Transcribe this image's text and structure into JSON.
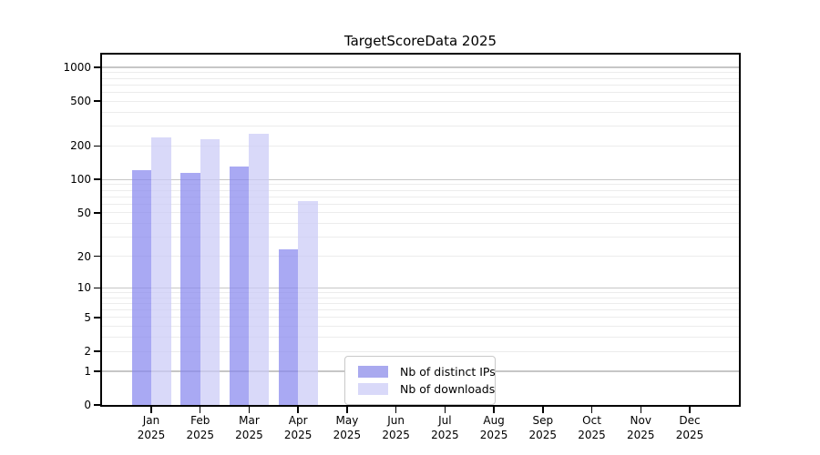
{
  "figure": {
    "background": "#ffffff"
  },
  "chart_data": {
    "type": "bar",
    "title": "TargetScoreData 2025",
    "categories": [
      "Jan",
      "Feb",
      "Mar",
      "Apr",
      "May",
      "Jun",
      "Jul",
      "Aug",
      "Sep",
      "Oct",
      "Nov",
      "Dec"
    ],
    "category_year": "2025",
    "series": [
      {
        "name": "Nb of distinct IPs",
        "color": "rgba(136,136,238,0.72)",
        "legend_color": "#a9a9ef",
        "values": [
          122,
          115,
          130,
          23,
          0,
          0,
          0,
          0,
          0,
          0,
          0,
          0
        ]
      },
      {
        "name": "Nb of downloads",
        "color": "rgba(202,202,247,0.72)",
        "legend_color": "#d9d9f9",
        "values": [
          237,
          229,
          255,
          64,
          0,
          0,
          0,
          0,
          0,
          0,
          0,
          0
        ]
      }
    ],
    "xlabel": "",
    "ylabel": "",
    "yscale": "log1p",
    "ylim": [
      0,
      1300
    ],
    "y_ticks": [
      0,
      1,
      2,
      5,
      10,
      20,
      50,
      100,
      200,
      500,
      1000
    ],
    "y_major_gridlines": [
      1,
      10,
      100,
      1000
    ],
    "y_minor_gridlines": [
      2,
      3,
      4,
      5,
      6,
      7,
      8,
      9,
      20,
      30,
      40,
      50,
      60,
      70,
      80,
      90,
      200,
      300,
      400,
      500,
      600,
      700,
      800,
      900
    ],
    "grid": true,
    "legend_position": "inside-bottom-center"
  },
  "legend": {
    "items": [
      "Nb of distinct IPs",
      "Nb of downloads"
    ]
  },
  "colors": {
    "bar_distinct_ips": "#a9a9ef",
    "bar_downloads": "#d9d9f9",
    "major_gridline": "#c6c6c6",
    "minor_gridline": "#ececec",
    "axis": "#000000",
    "legend_border": "#c9c9c9"
  }
}
